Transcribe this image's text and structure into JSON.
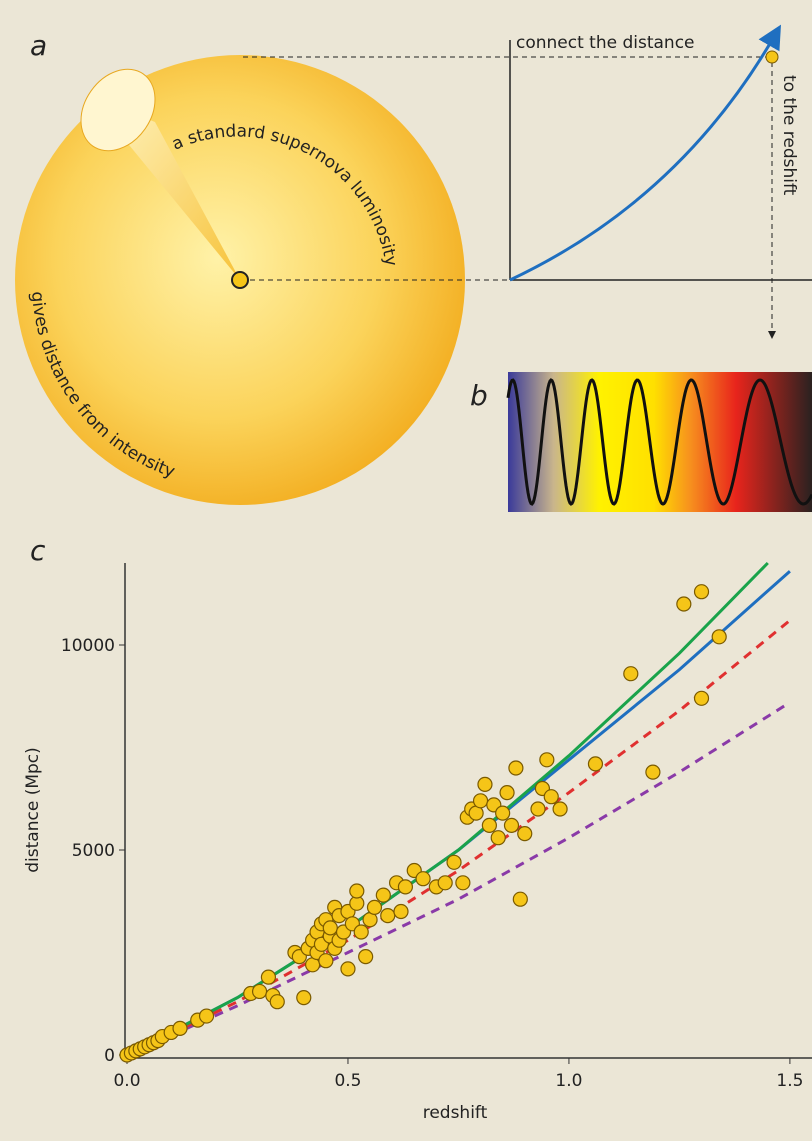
{
  "panel_a": {
    "label": "a",
    "luminosity_text": "a standard supernova luminosity",
    "intensity_text": "gives distance from intensity",
    "connect_text": "connect the distance",
    "redshift_text": "to the redshift"
  },
  "panel_b": {
    "label": "b"
  },
  "chart_data": {
    "type": "scatter",
    "label": "c",
    "xlabel": "redshift",
    "ylabel": "distance (Mpc)",
    "xlim": [
      0,
      1.55
    ],
    "ylim": [
      0,
      12000
    ],
    "xticks": [
      {
        "value": 0,
        "label": "0.0"
      },
      0.5,
      {
        "value": 1,
        "label": "1.0"
      },
      1.5
    ],
    "yticks": [
      0,
      5000,
      10000
    ],
    "points": {
      "color": "#f5c518",
      "x": [
        0.0,
        0.01,
        0.02,
        0.03,
        0.04,
        0.05,
        0.06,
        0.07,
        0.08,
        0.1,
        0.12,
        0.16,
        0.18,
        0.28,
        0.3,
        0.32,
        0.33,
        0.34,
        0.38,
        0.39,
        0.4,
        0.41,
        0.42,
        0.42,
        0.43,
        0.43,
        0.44,
        0.44,
        0.45,
        0.45,
        0.46,
        0.46,
        0.47,
        0.47,
        0.48,
        0.48,
        0.49,
        0.5,
        0.5,
        0.51,
        0.52,
        0.52,
        0.53,
        0.54,
        0.55,
        0.56,
        0.58,
        0.59,
        0.61,
        0.62,
        0.63,
        0.65,
        0.67,
        0.7,
        0.72,
        0.74,
        0.76,
        0.77,
        0.78,
        0.79,
        0.8,
        0.81,
        0.82,
        0.83,
        0.84,
        0.85,
        0.86,
        0.87,
        0.88,
        0.89,
        0.9,
        0.93,
        0.94,
        0.95,
        0.96,
        0.98,
        1.06,
        1.14,
        1.19,
        1.26,
        1.3,
        1.3,
        1.34
      ],
      "values": [
        0,
        50,
        100,
        150,
        200,
        250,
        300,
        350,
        450,
        550,
        650,
        850,
        950,
        1500,
        1550,
        1900,
        1450,
        1300,
        2500,
        2400,
        1400,
        2600,
        2200,
        2800,
        3000,
        2500,
        3200,
        2700,
        3300,
        2300,
        2900,
        3100,
        3600,
        2600,
        3400,
        2800,
        3000,
        3500,
        2100,
        3200,
        3700,
        4000,
        3000,
        2400,
        3300,
        3600,
        3900,
        3400,
        4200,
        3500,
        4100,
        4500,
        4300,
        4100,
        4200,
        4700,
        4200,
        5800,
        6000,
        5900,
        6200,
        6600,
        5600,
        6100,
        5300,
        5900,
        6400,
        5600,
        7000,
        3800,
        5400,
        6000,
        6500,
        7200,
        6300,
        6000,
        7100,
        9300,
        6900,
        11000,
        11300,
        8700,
        10200
      ]
    },
    "curves": [
      {
        "color": "#1aa34a",
        "style": "solid",
        "x": [
          0,
          0.25,
          0.5,
          0.75,
          1.0,
          1.25,
          1.45
        ],
        "values": [
          0,
          1400,
          3100,
          5000,
          7300,
          9800,
          12000
        ]
      },
      {
        "color": "#1f6fc0",
        "style": "solid",
        "x": [
          0,
          0.25,
          0.5,
          0.75,
          1.0,
          1.25,
          1.5
        ],
        "values": [
          0,
          1400,
          3100,
          5000,
          7200,
          9400,
          11800
        ]
      },
      {
        "color": "#e03030",
        "style": "dashed",
        "x": [
          0,
          0.25,
          0.5,
          0.75,
          1.0,
          1.25,
          1.5
        ],
        "values": [
          0,
          1300,
          2800,
          4500,
          6400,
          8400,
          10600
        ]
      },
      {
        "color": "#8a3aa8",
        "style": "dashed",
        "x": [
          0,
          0.25,
          0.5,
          0.75,
          1.0,
          1.25,
          1.5
        ],
        "values": [
          0,
          1200,
          2500,
          3800,
          5300,
          6900,
          8600
        ]
      }
    ]
  }
}
